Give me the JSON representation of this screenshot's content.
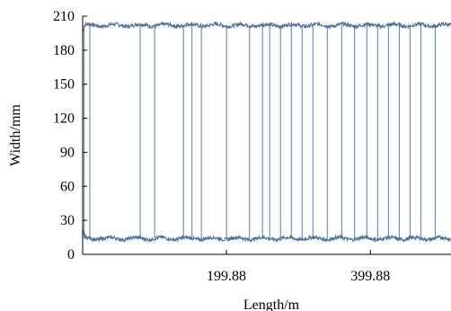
{
  "chart_data": {
    "type": "line",
    "title": "",
    "xlabel": "Length/m",
    "ylabel": "Width/mm",
    "xlim": [
      0,
      512
    ],
    "ylim": [
      0,
      210
    ],
    "x_ticks": [
      {
        "value": 199.88,
        "label": "199.88"
      },
      {
        "value": 399.88,
        "label": "399.88"
      }
    ],
    "y_ticks": [
      0,
      30,
      60,
      90,
      120,
      150,
      180,
      210
    ],
    "grid": false,
    "legend": "none",
    "series": [
      {
        "role": "upper-edge",
        "approx_level": 202,
        "range": [
          195,
          206
        ]
      },
      {
        "role": "lower-edge",
        "approx_level": 14,
        "range": [
          9,
          22
        ]
      }
    ],
    "vertical_lines_x": [
      2,
      10,
      80,
      100,
      140,
      152,
      165,
      200,
      232,
      250,
      260,
      275,
      290,
      305,
      320,
      340,
      360,
      378,
      395,
      410,
      425,
      440,
      455,
      470,
      490
    ],
    "line_color": "#4a6fa5"
  }
}
